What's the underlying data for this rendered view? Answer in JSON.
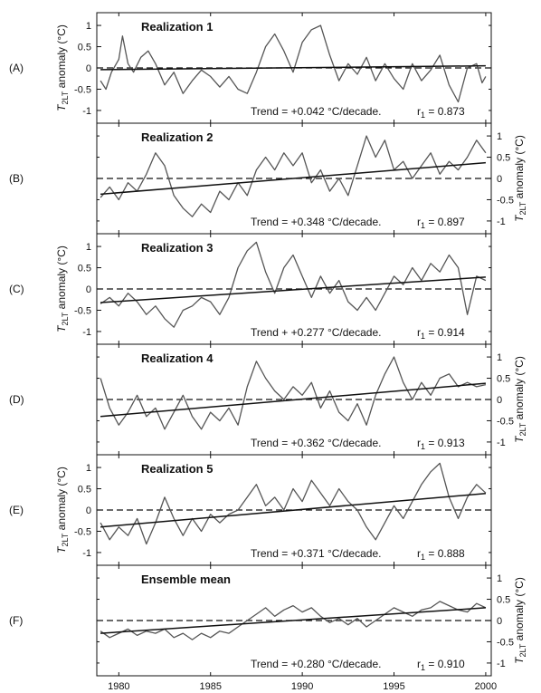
{
  "chart_data": {
    "type": "line",
    "x_axis": {
      "range": [
        1978.8,
        2000.3
      ],
      "ticks": [
        1980,
        1985,
        1990,
        1995,
        2000
      ],
      "tick_labels": [
        "1980",
        "1985",
        "1990",
        "1995",
        "2000"
      ]
    },
    "y_axis": {
      "range": [
        -1.3,
        1.3
      ],
      "ticks": [
        -1,
        -0.5,
        0,
        0.5,
        1
      ],
      "tick_labels": [
        "-1",
        "-0.5",
        "0",
        "0.5",
        "1"
      ],
      "label_main": "T",
      "label_sub": "2LT",
      "label_rest": " anomaly (°C)"
    },
    "panels": [
      {
        "id": "A",
        "label": "(A)",
        "title": "Realization 1",
        "axis_side": "left",
        "trend_text": "Trend = +0.042 °C/decade.",
        "r1_label": "r",
        "r1_sub": "1",
        "r1_value": " = 0.873",
        "trend_line": [
          [
            1979,
            -0.04
          ],
          [
            2000,
            0.05
          ]
        ],
        "series": [
          [
            1979,
            -0.3
          ],
          [
            1979.3,
            -0.5
          ],
          [
            1979.6,
            -0.1
          ],
          [
            1980,
            0.2
          ],
          [
            1980.2,
            0.75
          ],
          [
            1980.5,
            0.1
          ],
          [
            1980.8,
            -0.1
          ],
          [
            1981.2,
            0.25
          ],
          [
            1981.6,
            0.4
          ],
          [
            1982,
            0.1
          ],
          [
            1982.5,
            -0.4
          ],
          [
            1983,
            -0.1
          ],
          [
            1983.5,
            -0.6
          ],
          [
            1984,
            -0.3
          ],
          [
            1984.5,
            -0.05
          ],
          [
            1985,
            -0.2
          ],
          [
            1985.5,
            -0.45
          ],
          [
            1986,
            -0.2
          ],
          [
            1986.5,
            -0.5
          ],
          [
            1987,
            -0.6
          ],
          [
            1987.5,
            -0.1
          ],
          [
            1988,
            0.5
          ],
          [
            1988.5,
            0.8
          ],
          [
            1989,
            0.4
          ],
          [
            1989.5,
            -0.1
          ],
          [
            1990,
            0.6
          ],
          [
            1990.5,
            0.9
          ],
          [
            1991,
            1.0
          ],
          [
            1991.5,
            0.3
          ],
          [
            1992,
            -0.3
          ],
          [
            1992.5,
            0.1
          ],
          [
            1993,
            -0.15
          ],
          [
            1993.5,
            0.25
          ],
          [
            1994,
            -0.3
          ],
          [
            1994.5,
            0.1
          ],
          [
            1995,
            -0.25
          ],
          [
            1995.5,
            -0.5
          ],
          [
            1996,
            0.1
          ],
          [
            1996.5,
            -0.3
          ],
          [
            1997,
            -0.05
          ],
          [
            1997.5,
            0.3
          ],
          [
            1998,
            -0.4
          ],
          [
            1998.5,
            -0.8
          ],
          [
            1999,
            0.0
          ],
          [
            1999.5,
            0.1
          ],
          [
            1999.8,
            -0.35
          ],
          [
            2000,
            -0.2
          ]
        ]
      },
      {
        "id": "B",
        "label": "(B)",
        "title": "Realization 2",
        "axis_side": "right",
        "trend_text": "Trend = +0.348 °C/decade.",
        "r1_label": "r",
        "r1_sub": "1",
        "r1_value": " = 0.897",
        "trend_line": [
          [
            1979,
            -0.37
          ],
          [
            2000,
            0.37
          ]
        ],
        "series": [
          [
            1979,
            -0.45
          ],
          [
            1979.5,
            -0.2
          ],
          [
            1980,
            -0.5
          ],
          [
            1980.5,
            -0.1
          ],
          [
            1981,
            -0.3
          ],
          [
            1981.5,
            0.1
          ],
          [
            1982,
            0.6
          ],
          [
            1982.5,
            0.3
          ],
          [
            1983,
            -0.4
          ],
          [
            1983.5,
            -0.7
          ],
          [
            1984,
            -0.9
          ],
          [
            1984.5,
            -0.6
          ],
          [
            1985,
            -0.8
          ],
          [
            1985.5,
            -0.3
          ],
          [
            1986,
            -0.5
          ],
          [
            1986.5,
            -0.1
          ],
          [
            1987,
            -0.4
          ],
          [
            1987.5,
            0.2
          ],
          [
            1988,
            0.5
          ],
          [
            1988.5,
            0.2
          ],
          [
            1989,
            0.6
          ],
          [
            1989.5,
            0.3
          ],
          [
            1990,
            0.6
          ],
          [
            1990.5,
            -0.1
          ],
          [
            1991,
            0.2
          ],
          [
            1991.5,
            -0.3
          ],
          [
            1992,
            0.0
          ],
          [
            1992.5,
            -0.4
          ],
          [
            1993,
            0.3
          ],
          [
            1993.5,
            1.0
          ],
          [
            1994,
            0.5
          ],
          [
            1994.5,
            0.9
          ],
          [
            1995,
            0.2
          ],
          [
            1995.5,
            0.4
          ],
          [
            1996,
            0.0
          ],
          [
            1996.5,
            0.3
          ],
          [
            1997,
            0.6
          ],
          [
            1997.5,
            0.1
          ],
          [
            1998,
            0.4
          ],
          [
            1998.5,
            0.2
          ],
          [
            1999,
            0.5
          ],
          [
            1999.5,
            0.9
          ],
          [
            2000,
            0.6
          ]
        ]
      },
      {
        "id": "C",
        "label": "(C)",
        "title": "Realization 3",
        "axis_side": "left",
        "trend_text": "Trend + +0.277 °C/decade.",
        "r1_label": "r",
        "r1_sub": "1",
        "r1_value": " = 0.914",
        "trend_line": [
          [
            1979,
            -0.32
          ],
          [
            2000,
            0.28
          ]
        ],
        "series": [
          [
            1979,
            -0.35
          ],
          [
            1979.5,
            -0.2
          ],
          [
            1980,
            -0.4
          ],
          [
            1980.5,
            -0.1
          ],
          [
            1981,
            -0.3
          ],
          [
            1981.5,
            -0.6
          ],
          [
            1982,
            -0.4
          ],
          [
            1982.5,
            -0.7
          ],
          [
            1983,
            -0.9
          ],
          [
            1983.5,
            -0.5
          ],
          [
            1984,
            -0.4
          ],
          [
            1984.5,
            -0.2
          ],
          [
            1985,
            -0.3
          ],
          [
            1985.5,
            -0.6
          ],
          [
            1986,
            -0.2
          ],
          [
            1986.5,
            0.5
          ],
          [
            1987,
            0.9
          ],
          [
            1987.5,
            1.1
          ],
          [
            1988,
            0.4
          ],
          [
            1988.5,
            -0.1
          ],
          [
            1989,
            0.5
          ],
          [
            1989.5,
            0.8
          ],
          [
            1990,
            0.3
          ],
          [
            1990.5,
            -0.2
          ],
          [
            1991,
            0.3
          ],
          [
            1991.5,
            -0.1
          ],
          [
            1992,
            0.2
          ],
          [
            1992.5,
            -0.3
          ],
          [
            1993,
            -0.5
          ],
          [
            1993.5,
            -0.2
          ],
          [
            1994,
            -0.5
          ],
          [
            1994.5,
            -0.1
          ],
          [
            1995,
            0.3
          ],
          [
            1995.5,
            0.1
          ],
          [
            1996,
            0.5
          ],
          [
            1996.5,
            0.2
          ],
          [
            1997,
            0.6
          ],
          [
            1997.5,
            0.4
          ],
          [
            1998,
            0.8
          ],
          [
            1998.5,
            0.5
          ],
          [
            1999,
            -0.6
          ],
          [
            1999.5,
            0.3
          ],
          [
            2000,
            0.2
          ]
        ]
      },
      {
        "id": "D",
        "label": "(D)",
        "title": "Realization 4",
        "axis_side": "right",
        "trend_text": "Trend = +0.362 °C/decade.",
        "r1_label": "r",
        "r1_sub": "1",
        "r1_value": " = 0.913",
        "trend_line": [
          [
            1979,
            -0.4
          ],
          [
            2000,
            0.38
          ]
        ],
        "series": [
          [
            1979,
            0.5
          ],
          [
            1979.5,
            -0.2
          ],
          [
            1980,
            -0.6
          ],
          [
            1980.5,
            -0.3
          ],
          [
            1981,
            0.1
          ],
          [
            1981.5,
            -0.4
          ],
          [
            1982,
            -0.2
          ],
          [
            1982.5,
            -0.7
          ],
          [
            1983,
            -0.3
          ],
          [
            1983.5,
            0.1
          ],
          [
            1984,
            -0.4
          ],
          [
            1984.5,
            -0.7
          ],
          [
            1985,
            -0.3
          ],
          [
            1985.5,
            -0.5
          ],
          [
            1986,
            -0.2
          ],
          [
            1986.5,
            -0.6
          ],
          [
            1987,
            0.3
          ],
          [
            1987.5,
            0.9
          ],
          [
            1988,
            0.5
          ],
          [
            1988.5,
            0.2
          ],
          [
            1989,
            0.0
          ],
          [
            1989.5,
            0.3
          ],
          [
            1990,
            0.1
          ],
          [
            1990.5,
            0.4
          ],
          [
            1991,
            -0.2
          ],
          [
            1991.5,
            0.2
          ],
          [
            1992,
            -0.3
          ],
          [
            1992.5,
            -0.5
          ],
          [
            1993,
            -0.1
          ],
          [
            1993.5,
            -0.6
          ],
          [
            1994,
            0.1
          ],
          [
            1994.5,
            0.6
          ],
          [
            1995,
            1.0
          ],
          [
            1995.5,
            0.4
          ],
          [
            1996,
            0.0
          ],
          [
            1996.5,
            0.4
          ],
          [
            1997,
            0.1
          ],
          [
            1997.5,
            0.5
          ],
          [
            1998,
            0.6
          ],
          [
            1998.5,
            0.3
          ],
          [
            1999,
            0.4
          ],
          [
            1999.5,
            0.3
          ],
          [
            2000,
            0.35
          ]
        ]
      },
      {
        "id": "E",
        "label": "(E)",
        "title": "Realization 5",
        "axis_side": "left",
        "trend_text": "Trend = +0.371 °C/decade.",
        "r1_label": "r",
        "r1_sub": "1",
        "r1_value": " = 0.888",
        "trend_line": [
          [
            1979,
            -0.4
          ],
          [
            2000,
            0.39
          ]
        ],
        "series": [
          [
            1979,
            -0.3
          ],
          [
            1979.5,
            -0.7
          ],
          [
            1980,
            -0.4
          ],
          [
            1980.5,
            -0.6
          ],
          [
            1981,
            -0.2
          ],
          [
            1981.5,
            -0.8
          ],
          [
            1982,
            -0.3
          ],
          [
            1982.5,
            0.3
          ],
          [
            1983,
            -0.2
          ],
          [
            1983.5,
            -0.6
          ],
          [
            1984,
            -0.2
          ],
          [
            1984.5,
            -0.5
          ],
          [
            1985,
            -0.1
          ],
          [
            1985.5,
            -0.3
          ],
          [
            1986,
            -0.1
          ],
          [
            1986.5,
            0.0
          ],
          [
            1987,
            0.3
          ],
          [
            1987.5,
            0.6
          ],
          [
            1988,
            0.1
          ],
          [
            1988.5,
            0.3
          ],
          [
            1989,
            0.0
          ],
          [
            1989.5,
            0.5
          ],
          [
            1990,
            0.2
          ],
          [
            1990.5,
            0.7
          ],
          [
            1991,
            0.4
          ],
          [
            1991.5,
            0.1
          ],
          [
            1992,
            0.5
          ],
          [
            1992.5,
            0.2
          ],
          [
            1993,
            0.0
          ],
          [
            1993.5,
            -0.4
          ],
          [
            1994,
            -0.7
          ],
          [
            1994.5,
            -0.3
          ],
          [
            1995,
            0.1
          ],
          [
            1995.5,
            -0.2
          ],
          [
            1996,
            0.2
          ],
          [
            1996.5,
            0.6
          ],
          [
            1997,
            0.9
          ],
          [
            1997.5,
            1.1
          ],
          [
            1998,
            0.3
          ],
          [
            1998.5,
            -0.2
          ],
          [
            1999,
            0.3
          ],
          [
            1999.5,
            0.6
          ],
          [
            2000,
            0.4
          ]
        ]
      },
      {
        "id": "F",
        "label": "(F)",
        "title": "Ensemble mean",
        "axis_side": "right",
        "trend_text": "Trend = +0.280 °C/decade.",
        "r1_label": "r",
        "r1_sub": "1",
        "r1_value": " = 0.910",
        "trend_line": [
          [
            1979,
            -0.3
          ],
          [
            2000,
            0.3
          ]
        ],
        "series": [
          [
            1979,
            -0.25
          ],
          [
            1979.5,
            -0.4
          ],
          [
            1980,
            -0.3
          ],
          [
            1980.5,
            -0.2
          ],
          [
            1981,
            -0.35
          ],
          [
            1981.5,
            -0.25
          ],
          [
            1982,
            -0.3
          ],
          [
            1982.5,
            -0.2
          ],
          [
            1983,
            -0.4
          ],
          [
            1983.5,
            -0.3
          ],
          [
            1984,
            -0.45
          ],
          [
            1984.5,
            -0.3
          ],
          [
            1985,
            -0.4
          ],
          [
            1985.5,
            -0.25
          ],
          [
            1986,
            -0.3
          ],
          [
            1986.5,
            -0.15
          ],
          [
            1987,
            0.0
          ],
          [
            1987.5,
            0.15
          ],
          [
            1988,
            0.3
          ],
          [
            1988.5,
            0.1
          ],
          [
            1989,
            0.25
          ],
          [
            1989.5,
            0.35
          ],
          [
            1990,
            0.2
          ],
          [
            1990.5,
            0.3
          ],
          [
            1991,
            0.1
          ],
          [
            1991.5,
            -0.05
          ],
          [
            1992,
            0.05
          ],
          [
            1992.5,
            -0.1
          ],
          [
            1993,
            0.05
          ],
          [
            1993.5,
            -0.15
          ],
          [
            1994,
            0.0
          ],
          [
            1994.5,
            0.15
          ],
          [
            1995,
            0.3
          ],
          [
            1995.5,
            0.2
          ],
          [
            1996,
            0.1
          ],
          [
            1996.5,
            0.25
          ],
          [
            1997,
            0.3
          ],
          [
            1997.5,
            0.45
          ],
          [
            1998,
            0.35
          ],
          [
            1998.5,
            0.25
          ],
          [
            1999,
            0.2
          ],
          [
            1999.5,
            0.4
          ],
          [
            2000,
            0.3
          ]
        ]
      }
    ]
  }
}
